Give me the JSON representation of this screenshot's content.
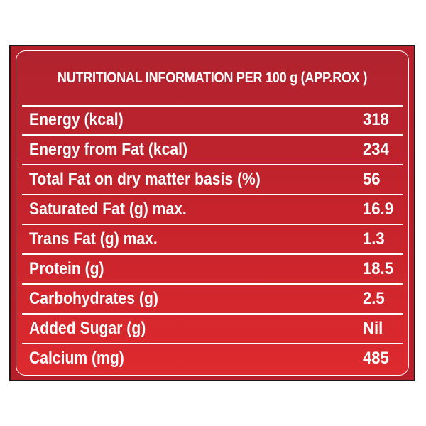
{
  "header": {
    "title": "NUTRITIONAL INFORMATION PER 100 g (APP.ROX )"
  },
  "rows": [
    {
      "label": "Energy (kcal)",
      "value": "318"
    },
    {
      "label": "Energy from Fat (kcal)",
      "value": "234"
    },
    {
      "label": "Total Fat on dry matter basis (%)",
      "value": "56"
    },
    {
      "label": "Saturated Fat (g) max.",
      "value": "16.9"
    },
    {
      "label": "Trans Fat (g) max.",
      "value": "1.3"
    },
    {
      "label": "Protein (g)",
      "value": "18.5"
    },
    {
      "label": "Carbohydrates (g)",
      "value": "2.5"
    },
    {
      "label": "Added Sugar (g)",
      "value": "Nil"
    },
    {
      "label": "Calcium (mg)",
      "value": "485"
    }
  ],
  "colors": {
    "background": "#c8232c",
    "text": "#ffffff",
    "border": "#1a1a1a"
  }
}
